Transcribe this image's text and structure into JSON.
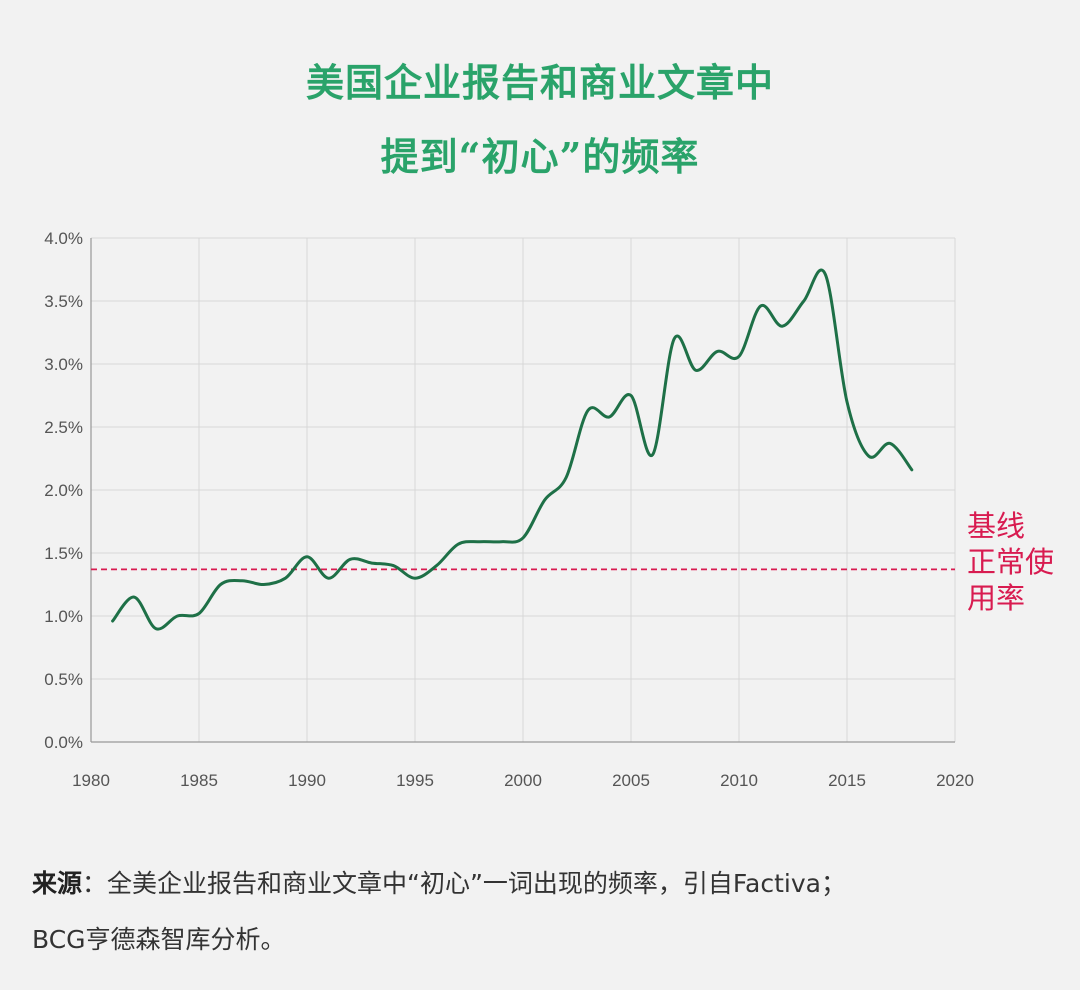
{
  "title": {
    "line1": "美国企业报告和商业文章中",
    "line2": "提到“初心”的频率"
  },
  "colors": {
    "title": "#2aa36a",
    "line": "#1e7047",
    "baseline": "#d81b50",
    "grid": "#d8d8d8",
    "background": "#f2f2f2"
  },
  "baseline_label": [
    "基线",
    "正常使",
    "用率"
  ],
  "source": {
    "label": "来源",
    "colon": "：",
    "text_line1": "全美企业报告和商业文章中“初心”一词出现的频率，引自Factiva；",
    "text_line2": "BCG亨德森智库分析。"
  },
  "chart_data": {
    "type": "line",
    "title": "美国企业报告和商业文章中提到“初心”的频率",
    "xlabel": "",
    "ylabel": "",
    "xlim": [
      1980,
      2020
    ],
    "ylim": [
      0,
      4.0
    ],
    "x_ticks": [
      "1980",
      "1985",
      "1990",
      "1995",
      "2000",
      "2005",
      "2010",
      "2015",
      "2020"
    ],
    "y_ticks": [
      "0.0%",
      "0.5%",
      "1.0%",
      "1.5%",
      "2.0%",
      "2.5%",
      "3.0%",
      "3.5%",
      "4.0%"
    ],
    "grid": true,
    "baseline": {
      "label": "基线正常使用率",
      "value": 1.37,
      "style": "dashed"
    },
    "series": [
      {
        "x": [
          1981,
          1982,
          1983,
          1984,
          1985,
          1986,
          1987,
          1988,
          1989,
          1990,
          1991,
          1992,
          1993,
          1994,
          1995,
          1996,
          1997,
          1998,
          1999,
          2000,
          2001,
          2002,
          2003,
          2004,
          2005,
          2006,
          2007,
          2008,
          2009,
          2010,
          2011,
          2012,
          2013,
          2014,
          2015,
          2016,
          2017,
          2018
        ],
        "values": [
          0.96,
          1.15,
          0.9,
          1.0,
          1.02,
          1.25,
          1.28,
          1.25,
          1.3,
          1.47,
          1.3,
          1.45,
          1.42,
          1.4,
          1.3,
          1.4,
          1.57,
          1.59,
          1.59,
          1.62,
          1.92,
          2.1,
          2.63,
          2.58,
          2.75,
          2.28,
          3.2,
          2.95,
          3.1,
          3.06,
          3.46,
          3.3,
          3.5,
          3.71,
          2.7,
          2.27,
          2.37,
          2.16
        ]
      }
    ]
  }
}
